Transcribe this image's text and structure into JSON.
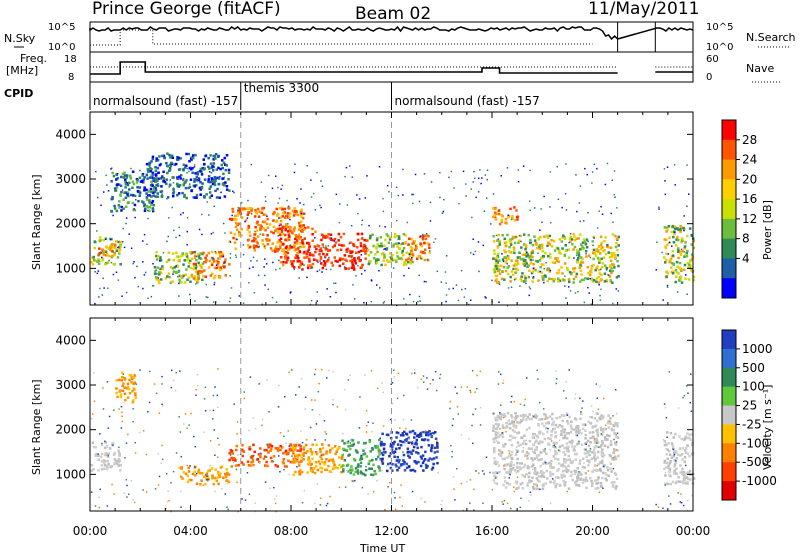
{
  "header": {
    "station": "Prince George (fitACF)",
    "beam": "Beam 02",
    "date": "11/May/2011"
  },
  "status_strip": {
    "nsky_label": "N.Sky",
    "nsky_ticks": [
      "10^5",
      "10^0"
    ],
    "nsearch_label": "N.Search",
    "nsearch_ticks": [
      "10^5",
      "10^0"
    ],
    "freq_label": "Freq.",
    "freq_unit": "[MHz]",
    "freq_ticks": [
      "18",
      "8"
    ],
    "nave_label": "Nave",
    "nave_ticks": [
      "60",
      "0"
    ],
    "cpid_label": "CPID",
    "cpid_segments": [
      {
        "label": "normalsound (fast) -157",
        "start": 0.0,
        "end": 6.0,
        "row": "lower"
      },
      {
        "label": "themis 3300",
        "start": 6.0,
        "end": 12.0,
        "row": "upper"
      },
      {
        "label": "normalsound (fast) -157",
        "start": 12.0,
        "end": 24.0,
        "row": "lower"
      }
    ]
  },
  "colorbars": {
    "power": {
      "label": "Power [dB]",
      "ticks": [
        "28",
        "24",
        "20",
        "16",
        "12",
        "8",
        "4"
      ],
      "colors": [
        "#ff0000",
        "#ff5500",
        "#ff9900",
        "#ffd000",
        "#c8e000",
        "#6dbd3c",
        "#2e8b57",
        "#1e5fa8",
        "#0000ff"
      ]
    },
    "velocity": {
      "label": "Velocity [m s⁻¹]",
      "ticks": [
        "1000",
        "500",
        "100",
        "25",
        "-25",
        "-100",
        "-500",
        "-1000"
      ],
      "colors": [
        "#1f3fc0",
        "#2f6fd0",
        "#2e8b57",
        "#5fc83c",
        "#c8c8c8",
        "#ffc000",
        "#ff8000",
        "#ff4000",
        "#e00000"
      ]
    }
  },
  "chart_data": [
    {
      "type": "heatmap",
      "name": "power",
      "ylabel": "Slant Range [km]",
      "xlabel": "Time UT",
      "x_ticks": [
        "00:00",
        "04:00",
        "08:00",
        "12:00",
        "16:00",
        "20:00",
        "00:00"
      ],
      "y_ticks": [
        "1000",
        "2000",
        "3000",
        "4000"
      ],
      "xlim_hours": [
        0,
        24
      ],
      "ylim_km": [
        180,
        4500
      ],
      "gaps_hours": [
        [
          21.0,
          22.5
        ],
        [
          23.1,
          23.3
        ]
      ],
      "regions": [
        {
          "t0": 0.0,
          "t1": 1.2,
          "r0": 1100,
          "r1": 1750,
          "level": "green"
        },
        {
          "t0": 0.3,
          "t1": 1.0,
          "r0": 1300,
          "r1": 1600,
          "level": "orange"
        },
        {
          "t0": 0.8,
          "t1": 2.6,
          "r0": 2300,
          "r1": 3200,
          "level": "green-blue"
        },
        {
          "t0": 2.2,
          "t1": 5.5,
          "r0": 2600,
          "r1": 3600,
          "level": "blue"
        },
        {
          "t0": 2.5,
          "t1": 4.5,
          "r0": 700,
          "r1": 1400,
          "level": "green"
        },
        {
          "t0": 4.0,
          "t1": 5.5,
          "r0": 800,
          "r1": 1400,
          "level": "orange"
        },
        {
          "t0": 5.5,
          "t1": 8.5,
          "r0": 1400,
          "r1": 2400,
          "level": "orange"
        },
        {
          "t0": 7.5,
          "t1": 9.0,
          "r0": 1000,
          "r1": 2000,
          "level": "red-orange"
        },
        {
          "t0": 9.0,
          "t1": 11.0,
          "r0": 1000,
          "r1": 1800,
          "level": "red"
        },
        {
          "t0": 11.0,
          "t1": 12.8,
          "r0": 1100,
          "r1": 1800,
          "level": "green"
        },
        {
          "t0": 12.5,
          "t1": 13.5,
          "r0": 1200,
          "r1": 1800,
          "level": "orange"
        },
        {
          "t0": 16.0,
          "t1": 21.0,
          "r0": 700,
          "r1": 1800,
          "level": "orange-green"
        },
        {
          "t0": 16.0,
          "t1": 17.0,
          "r0": 2000,
          "r1": 2400,
          "level": "orange"
        },
        {
          "t0": 22.8,
          "t1": 24.0,
          "r0": 700,
          "r1": 2000,
          "level": "orange-green"
        }
      ]
    },
    {
      "type": "heatmap",
      "name": "velocity",
      "ylabel": "Slant Range [km]",
      "xlabel": "Time UT",
      "x_ticks": [
        "00:00",
        "04:00",
        "08:00",
        "12:00",
        "16:00",
        "20:00",
        "00:00"
      ],
      "y_ticks": [
        "1000",
        "2000",
        "3000",
        "4000"
      ],
      "xlim_hours": [
        0,
        24
      ],
      "ylim_km": [
        180,
        4500
      ],
      "regions": [
        {
          "t0": 0.0,
          "t1": 1.2,
          "r0": 1100,
          "r1": 1750,
          "level": "grey"
        },
        {
          "t0": 1.0,
          "t1": 1.8,
          "r0": 2600,
          "r1": 3300,
          "level": "orange"
        },
        {
          "t0": 3.5,
          "t1": 5.5,
          "r0": 800,
          "r1": 1200,
          "level": "orange"
        },
        {
          "t0": 5.5,
          "t1": 8.5,
          "r0": 1200,
          "r1": 1700,
          "level": "orange-red"
        },
        {
          "t0": 8.0,
          "t1": 10.0,
          "r0": 1000,
          "r1": 1700,
          "level": "orange"
        },
        {
          "t0": 10.0,
          "t1": 11.5,
          "r0": 1000,
          "r1": 1800,
          "level": "green"
        },
        {
          "t0": 11.5,
          "t1": 13.8,
          "r0": 1100,
          "r1": 2000,
          "level": "blue"
        },
        {
          "t0": 16.0,
          "t1": 21.0,
          "r0": 700,
          "r1": 2400,
          "level": "grey"
        },
        {
          "t0": 22.8,
          "t1": 24.0,
          "r0": 800,
          "r1": 2000,
          "level": "grey"
        }
      ]
    }
  ],
  "axis": {
    "xlabel": "Time UT"
  }
}
